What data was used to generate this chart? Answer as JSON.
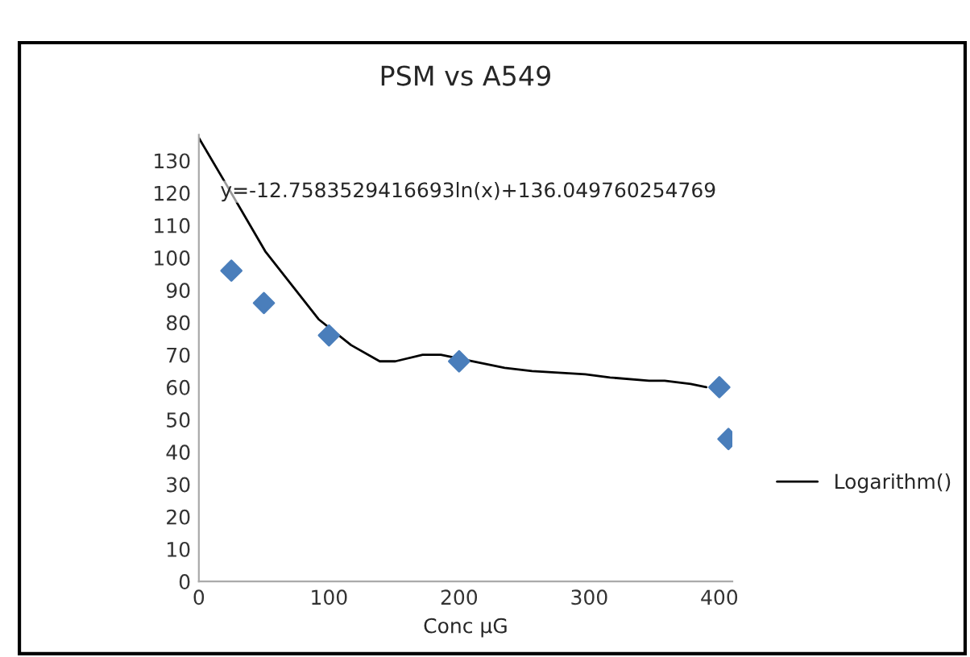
{
  "chart_data": {
    "type": "scatter",
    "title": "PSM vs A549",
    "xlabel": "Conc µG",
    "annotations": [
      "y=-12.7583529416693ln(x)+136.049760254769"
    ],
    "series": [
      {
        "color": "#4a7ebb",
        "marker": "diamond",
        "x": [
          25,
          50,
          100,
          200,
          400,
          407
        ],
        "values": [
          96,
          86,
          76,
          68,
          60,
          44
        ]
      },
      {
        "type": "line",
        "name": "Logarithm()",
        "color": "#000000",
        "line_style": "solid",
        "x": [
          0,
          22,
          51,
          92,
          117,
          139,
          151,
          172,
          186,
          198,
          235,
          256,
          297,
          316,
          346,
          358,
          378,
          390
        ],
        "values": [
          137,
          122,
          102,
          81,
          73,
          68,
          68,
          70,
          70,
          69,
          66,
          65,
          64,
          63,
          62,
          62,
          61,
          60
        ]
      }
    ],
    "xlim": [
      0,
      410
    ],
    "ylim": [
      0,
      138
    ],
    "xticks": [
      0,
      100,
      200,
      300,
      400
    ],
    "yticks": [
      0,
      10,
      20,
      30,
      40,
      50,
      60,
      70,
      80,
      90,
      100,
      110,
      120,
      130
    ],
    "grid": false,
    "legend": "right"
  }
}
